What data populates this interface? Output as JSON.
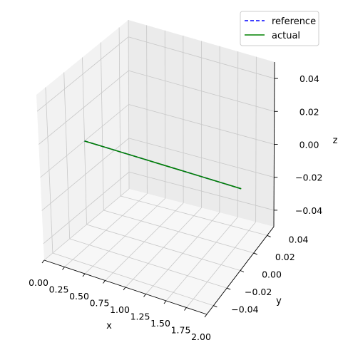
{
  "chart_data": {
    "type": "line",
    "projection": "3d",
    "series": [
      {
        "name": "reference",
        "color": "#0000ff",
        "style": "dashed",
        "x": [
          0.0,
          0.25,
          0.5,
          0.75,
          1.0,
          1.25,
          1.5,
          1.75,
          2.0
        ],
        "y": [
          0,
          0,
          0,
          0,
          0,
          0,
          0,
          0,
          0
        ],
        "z": [
          0,
          0,
          0,
          0,
          0,
          0,
          0,
          0,
          0
        ]
      },
      {
        "name": "actual",
        "color": "#008000",
        "style": "solid",
        "x": [
          0.0,
          0.25,
          0.5,
          0.75,
          1.0,
          1.25,
          1.5,
          1.75,
          2.0
        ],
        "y": [
          0,
          0,
          0,
          0,
          0,
          0,
          0,
          0,
          0
        ],
        "z": [
          0,
          0,
          0,
          0,
          0,
          0,
          0,
          0,
          0
        ]
      }
    ],
    "xlabel": "x",
    "ylabel": "y",
    "zlabel": "z",
    "xlim": [
      0,
      2
    ],
    "ylim": [
      -0.05,
      0.05
    ],
    "zlim": [
      -0.05,
      0.05
    ],
    "x_ticks": [
      "0.00",
      "0.25",
      "0.50",
      "0.75",
      "1.00",
      "1.25",
      "1.50",
      "1.75",
      "2.00"
    ],
    "y_ticks": [
      "−0.04",
      "−0.02",
      "0.00",
      "0.02",
      "0.04"
    ],
    "z_ticks": [
      "−0.04",
      "−0.02",
      "0.00",
      "0.02",
      "0.04"
    ],
    "grid": true,
    "legend_position": "top-right"
  }
}
